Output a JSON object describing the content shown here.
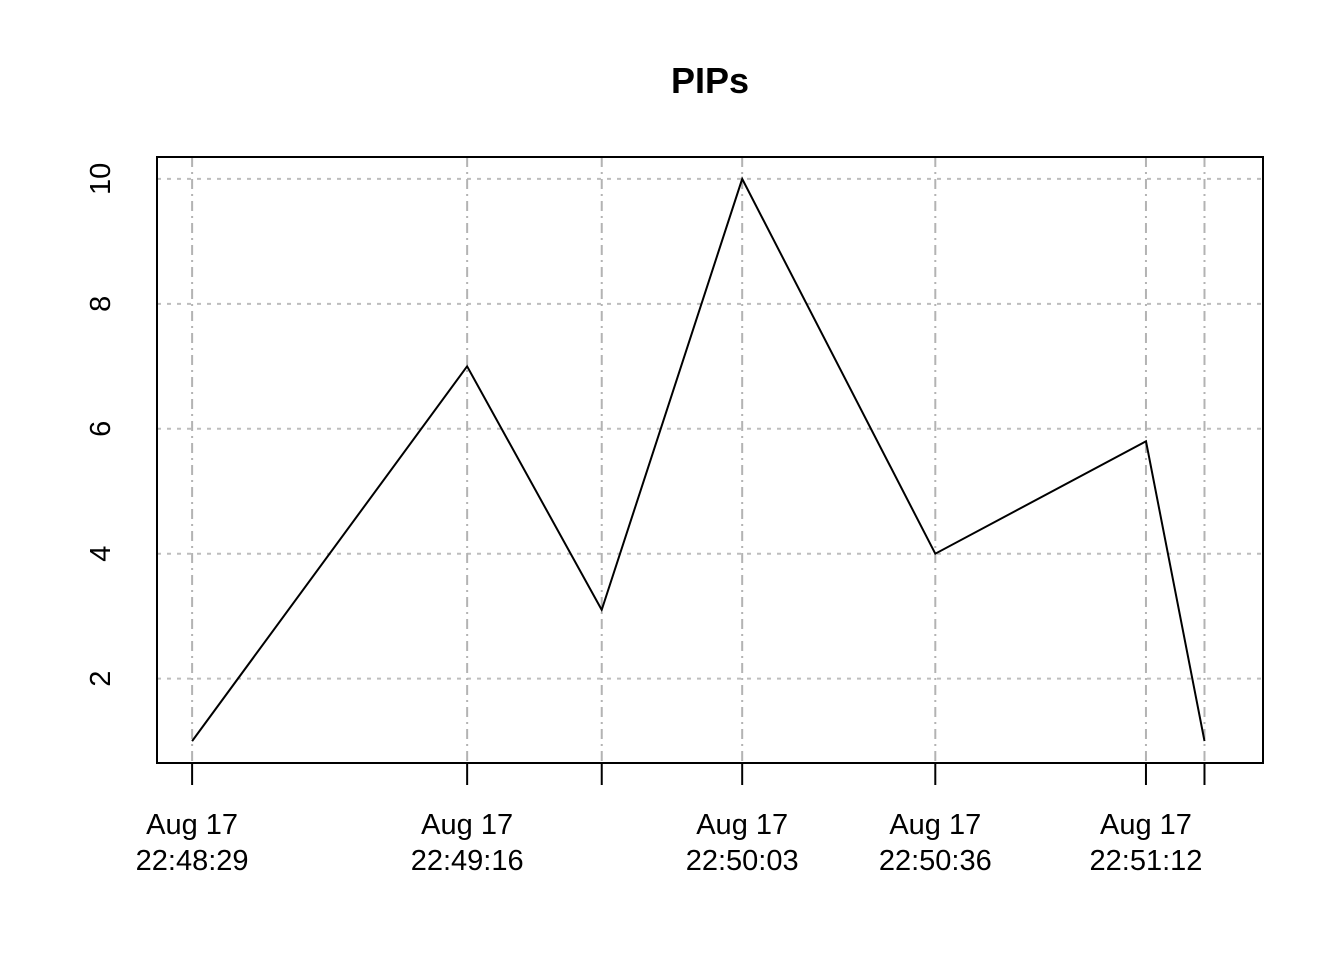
{
  "chart_data": {
    "type": "line",
    "title": "PIPs",
    "xlabel": "",
    "ylabel": "",
    "x_axis": "time",
    "xlim": [
      "2023-08-17T22:48:23",
      "2023-08-17T22:51:32"
    ],
    "ylim": [
      0.65,
      10.35
    ],
    "grid": true,
    "y_ticks": [
      2,
      4,
      6,
      8,
      10
    ],
    "x_ticks": [
      {
        "time": "2023-08-17T22:48:29",
        "label": [
          "Aug 17",
          "22:48:29"
        ]
      },
      {
        "time": "2023-08-17T22:49:16",
        "label": [
          "Aug 17",
          "22:49:16"
        ]
      },
      {
        "time": "2023-08-17T22:49:39",
        "label": []
      },
      {
        "time": "2023-08-17T22:50:03",
        "label": [
          "Aug 17",
          "22:50:03"
        ]
      },
      {
        "time": "2023-08-17T22:50:36",
        "label": [
          "Aug 17",
          "22:50:36"
        ]
      },
      {
        "time": "2023-08-17T22:51:12",
        "label": [
          "Aug 17",
          "22:51:12"
        ]
      },
      {
        "time": "2023-08-17T22:51:22",
        "label": []
      }
    ],
    "series": [
      {
        "x": [
          "2023-08-17T22:48:29",
          "2023-08-17T22:49:16",
          "2023-08-17T22:49:39",
          "2023-08-17T22:50:03",
          "2023-08-17T22:50:36",
          "2023-08-17T22:51:12",
          "2023-08-17T22:51:22"
        ],
        "values": [
          1,
          7,
          3.1,
          10,
          4,
          5.8,
          1
        ],
        "color": "#000000"
      }
    ]
  }
}
